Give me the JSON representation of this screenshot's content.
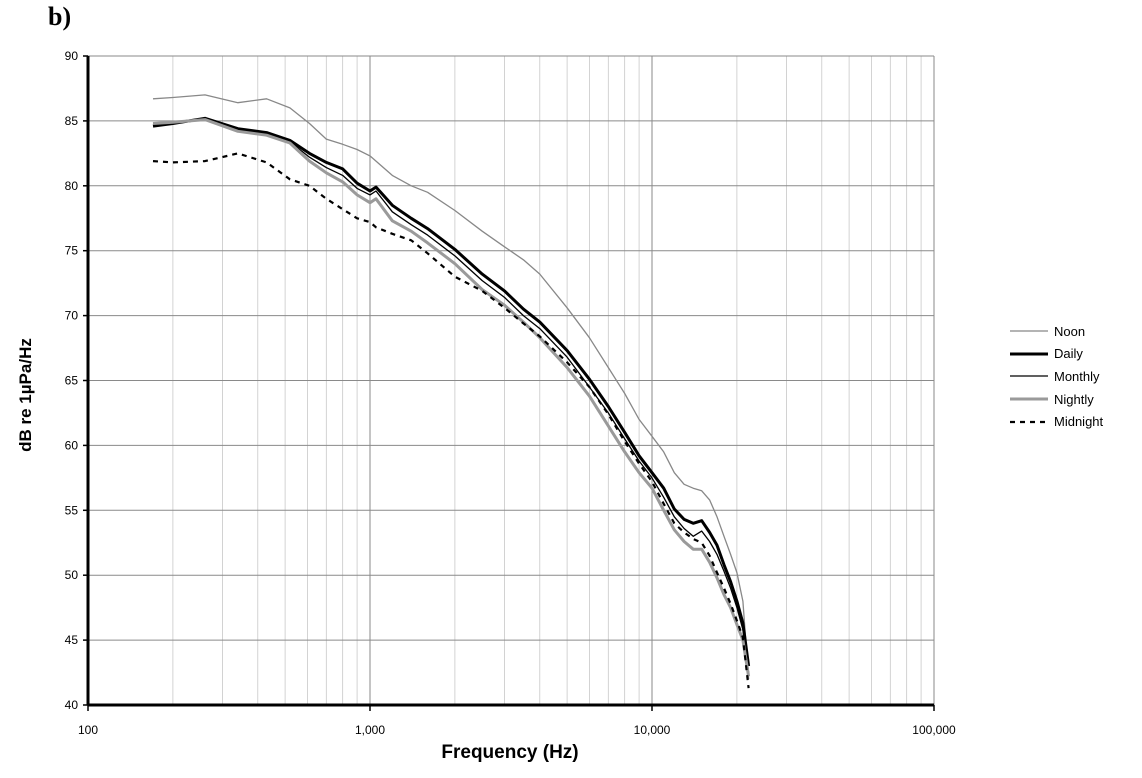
{
  "panel_label": "b)",
  "chart_data": {
    "type": "line",
    "title": "",
    "xlabel": "Frequency (Hz)",
    "ylabel": "dB re 1µPa/Hz",
    "xscale": "log",
    "xlim": [
      100,
      100000
    ],
    "ylim": [
      40,
      90
    ],
    "x_ticks": [
      100,
      1000,
      10000,
      100000
    ],
    "x_tick_labels": [
      "100",
      "1,000",
      "10,000",
      "100,000"
    ],
    "y_ticks": [
      40,
      45,
      50,
      55,
      60,
      65,
      70,
      75,
      80,
      85,
      90
    ],
    "grid": true,
    "legend_position": "right",
    "series": [
      {
        "name": "Noon",
        "color": "#888888",
        "style": "thin",
        "x": [
          170,
          200,
          260,
          340,
          430,
          520,
          610,
          700,
          800,
          900,
          1000,
          1050,
          1200,
          1400,
          1600,
          2000,
          2500,
          3000,
          3500,
          4000,
          5000,
          6000,
          7000,
          8000,
          9000,
          10000,
          11000,
          12000,
          13000,
          14000,
          15000,
          16000,
          17000,
          18000,
          19000,
          20000,
          21000,
          22000
        ],
        "y": [
          86.7,
          86.8,
          87.0,
          86.4,
          86.7,
          86.0,
          84.8,
          83.6,
          83.2,
          82.8,
          82.3,
          81.9,
          80.8,
          80.0,
          79.5,
          78.1,
          76.5,
          75.3,
          74.3,
          73.2,
          70.6,
          68.3,
          66.0,
          64.0,
          62.0,
          60.7,
          59.5,
          57.9,
          57.0,
          56.7,
          56.5,
          55.8,
          54.5,
          53.0,
          51.6,
          50.2,
          48.0,
          42.0
        ]
      },
      {
        "name": "Daily",
        "color": "#000000",
        "style": "thick",
        "x": [
          170,
          200,
          260,
          340,
          430,
          520,
          610,
          700,
          800,
          900,
          1000,
          1050,
          1200,
          1400,
          1600,
          2000,
          2500,
          3000,
          3500,
          4000,
          5000,
          6000,
          7000,
          8000,
          9000,
          10000,
          11000,
          12000,
          13000,
          14000,
          15000,
          16000,
          17000,
          18000,
          19000,
          20000,
          21000,
          22000
        ],
        "y": [
          84.6,
          84.8,
          85.2,
          84.4,
          84.1,
          83.5,
          82.5,
          81.8,
          81.3,
          80.2,
          79.6,
          79.9,
          78.5,
          77.5,
          76.7,
          75.1,
          73.2,
          71.9,
          70.5,
          69.5,
          67.3,
          65.1,
          63.0,
          61.0,
          59.2,
          57.9,
          56.7,
          55.1,
          54.3,
          54.0,
          54.2,
          53.3,
          52.3,
          50.8,
          49.5,
          48.0,
          46.3,
          43.0
        ]
      },
      {
        "name": "Monthly",
        "color": "#000000",
        "style": "thin",
        "x": [
          170,
          200,
          260,
          340,
          430,
          520,
          610,
          700,
          800,
          900,
          1000,
          1050,
          1200,
          1400,
          1600,
          2000,
          2500,
          3000,
          3500,
          4000,
          5000,
          6000,
          7000,
          8000,
          9000,
          10000,
          11000,
          12000,
          13000,
          14000,
          15000,
          16000,
          17000,
          18000,
          19000,
          20000,
          21000,
          22000
        ],
        "y": [
          84.7,
          84.9,
          85.1,
          84.3,
          84.0,
          83.4,
          82.2,
          81.4,
          80.8,
          79.8,
          79.3,
          79.6,
          78.0,
          77.0,
          76.2,
          74.6,
          72.7,
          71.4,
          70.0,
          69.0,
          66.8,
          64.5,
          62.5,
          60.5,
          58.8,
          57.5,
          56.0,
          54.5,
          53.6,
          53.0,
          53.4,
          52.6,
          51.6,
          50.3,
          49.0,
          47.5,
          45.8,
          42.5
        ]
      },
      {
        "name": "Nightly",
        "color": "#9a9a9a",
        "style": "thick",
        "x": [
          170,
          200,
          260,
          340,
          430,
          520,
          610,
          700,
          800,
          900,
          1000,
          1050,
          1200,
          1400,
          1600,
          2000,
          2500,
          3000,
          3500,
          4000,
          5000,
          6000,
          7000,
          8000,
          9000,
          10000,
          11000,
          12000,
          13000,
          14000,
          15000,
          16000,
          17000,
          18000,
          19000,
          20000,
          21000,
          22000
        ],
        "y": [
          84.8,
          84.9,
          85.1,
          84.2,
          83.9,
          83.3,
          81.9,
          81.0,
          80.3,
          79.3,
          78.7,
          79.0,
          77.3,
          76.5,
          75.6,
          74.0,
          72.0,
          70.8,
          69.5,
          68.3,
          66.0,
          63.8,
          61.5,
          59.5,
          57.9,
          56.7,
          55.0,
          53.5,
          52.6,
          52.0,
          52.0,
          51.0,
          49.8,
          48.5,
          47.5,
          46.2,
          45.0,
          42.2
        ]
      },
      {
        "name": "Midnight",
        "color": "#000000",
        "style": "dashed",
        "x": [
          170,
          200,
          260,
          340,
          430,
          520,
          610,
          700,
          800,
          900,
          1000,
          1050,
          1200,
          1400,
          1600,
          2000,
          2500,
          3000,
          3500,
          4000,
          5000,
          6000,
          7000,
          8000,
          9000,
          10000,
          11000,
          12000,
          13000,
          14000,
          15000,
          16000,
          17000,
          18000,
          19000,
          20000,
          21000,
          22000
        ],
        "y": [
          81.9,
          81.8,
          81.9,
          82.5,
          81.8,
          80.5,
          80.0,
          79.0,
          78.2,
          77.5,
          77.2,
          76.8,
          76.3,
          75.8,
          74.8,
          73.0,
          71.9,
          70.6,
          69.4,
          68.4,
          66.4,
          64.5,
          62.4,
          60.3,
          58.6,
          57.2,
          55.5,
          54.0,
          53.3,
          52.8,
          52.5,
          51.5,
          50.2,
          49.0,
          47.8,
          46.5,
          45.2,
          41.3
        ]
      }
    ]
  }
}
